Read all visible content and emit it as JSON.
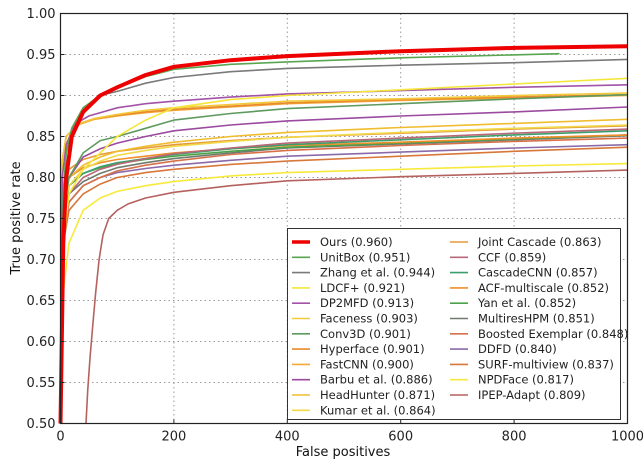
{
  "chart_data": {
    "type": "line",
    "title": "",
    "xlabel": "False positives",
    "ylabel": "True positive rate",
    "xlim": [
      0,
      1000
    ],
    "ylim": [
      0.5,
      1.0
    ],
    "xticks": [
      "0",
      "200",
      "400",
      "600",
      "800",
      "1000"
    ],
    "xtick_values": [
      0,
      200,
      400,
      600,
      800,
      1000
    ],
    "yticks": [
      "0.50",
      "0.55",
      "0.60",
      "0.65",
      "0.70",
      "0.75",
      "0.80",
      "0.85",
      "0.90",
      "0.95",
      "1.00"
    ],
    "ytick_values": [
      0.5,
      0.55,
      0.6,
      0.65,
      0.7,
      0.75,
      0.8,
      0.85,
      0.9,
      0.95,
      1.0
    ],
    "grid": true,
    "legend_position": "bottom-right",
    "series": [
      {
        "name": "Ours (0.960)",
        "color": "#ee0000",
        "width": 4,
        "x": [
          0,
          5,
          10,
          20,
          40,
          70,
          100,
          150,
          200,
          300,
          400,
          600,
          800,
          1000
        ],
        "y": [
          0.5,
          0.72,
          0.8,
          0.85,
          0.88,
          0.9,
          0.91,
          0.925,
          0.935,
          0.943,
          0.948,
          0.954,
          0.958,
          0.96
        ]
      },
      {
        "name": "UnitBox (0.951)",
        "color": "#5aa552",
        "width": 1.6,
        "x": [
          0,
          5,
          10,
          20,
          40,
          70,
          100,
          150,
          200,
          300,
          400,
          600,
          880
        ],
        "y": [
          0.5,
          0.78,
          0.83,
          0.86,
          0.885,
          0.9,
          0.91,
          0.923,
          0.932,
          0.938,
          0.941,
          0.946,
          0.951
        ]
      },
      {
        "name": "Zhang et al. (0.944)",
        "color": "#7a7a7a",
        "width": 1.6,
        "x": [
          0,
          5,
          10,
          20,
          40,
          70,
          100,
          150,
          200,
          300,
          400,
          600,
          800,
          1000
        ],
        "y": [
          0.5,
          0.78,
          0.83,
          0.86,
          0.885,
          0.9,
          0.905,
          0.915,
          0.922,
          0.929,
          0.933,
          0.937,
          0.94,
          0.944
        ]
      },
      {
        "name": "LDCF+ (0.921)",
        "color": "#f5e63a",
        "width": 1.6,
        "x": [
          0,
          5,
          15,
          40,
          70,
          100,
          150,
          200,
          300,
          400,
          600,
          800,
          1000
        ],
        "y": [
          0.5,
          0.72,
          0.78,
          0.81,
          0.83,
          0.85,
          0.87,
          0.885,
          0.895,
          0.9,
          0.907,
          0.914,
          0.921
        ]
      },
      {
        "name": "DP2MFD (0.913)",
        "color": "#a253a8",
        "width": 1.6,
        "x": [
          0,
          3,
          10,
          25,
          50,
          100,
          150,
          200,
          300,
          400,
          600,
          800,
          1000
        ],
        "y": [
          0.5,
          0.8,
          0.84,
          0.865,
          0.875,
          0.885,
          0.89,
          0.893,
          0.898,
          0.902,
          0.906,
          0.91,
          0.913
        ]
      },
      {
        "name": "Faceness (0.903)",
        "color": "#f2c93a",
        "width": 1.6,
        "x": [
          0,
          3,
          10,
          30,
          60,
          100,
          150,
          200,
          300,
          400,
          600,
          800,
          1000
        ],
        "y": [
          0.5,
          0.82,
          0.85,
          0.865,
          0.872,
          0.877,
          0.882,
          0.885,
          0.889,
          0.893,
          0.896,
          0.9,
          0.903
        ]
      },
      {
        "name": "Conv3D (0.901)",
        "color": "#5e9a5e",
        "width": 1.6,
        "x": [
          0,
          5,
          15,
          40,
          70,
          100,
          150,
          200,
          300,
          400,
          600,
          800,
          1000
        ],
        "y": [
          0.5,
          0.76,
          0.8,
          0.83,
          0.845,
          0.85,
          0.86,
          0.87,
          0.878,
          0.884,
          0.89,
          0.896,
          0.901
        ]
      },
      {
        "name": "Hyperface (0.901)",
        "color": "#e98a2c",
        "width": 1.6,
        "x": [
          0,
          3,
          10,
          30,
          60,
          100,
          150,
          200,
          300,
          400,
          600,
          800,
          1000
        ],
        "y": [
          0.5,
          0.82,
          0.85,
          0.865,
          0.872,
          0.876,
          0.88,
          0.883,
          0.887,
          0.891,
          0.895,
          0.898,
          0.901
        ]
      },
      {
        "name": "FastCNN (0.900)",
        "color": "#f4a93a",
        "width": 1.6,
        "x": [
          0,
          3,
          10,
          30,
          60,
          100,
          150,
          200,
          300,
          400,
          600,
          800,
          1000
        ],
        "y": [
          0.5,
          0.82,
          0.85,
          0.864,
          0.871,
          0.875,
          0.879,
          0.882,
          0.886,
          0.89,
          0.894,
          0.897,
          0.9
        ]
      },
      {
        "name": "Barbu et al. (0.886)",
        "color": "#9b4aa0",
        "width": 1.6,
        "x": [
          0,
          5,
          15,
          40,
          70,
          100,
          150,
          200,
          300,
          400,
          600,
          800,
          1000
        ],
        "y": [
          0.5,
          0.76,
          0.8,
          0.825,
          0.835,
          0.842,
          0.85,
          0.857,
          0.864,
          0.869,
          0.875,
          0.88,
          0.886
        ]
      },
      {
        "name": "HeadHunter (0.871)",
        "color": "#f0bd2e",
        "width": 1.6,
        "x": [
          0,
          5,
          15,
          40,
          70,
          100,
          150,
          200,
          300,
          400,
          600,
          800,
          1000
        ],
        "y": [
          0.5,
          0.77,
          0.8,
          0.815,
          0.825,
          0.832,
          0.838,
          0.843,
          0.85,
          0.855,
          0.861,
          0.866,
          0.871
        ]
      },
      {
        "name": "Kumar et al. (0.864)",
        "color": "#f1d94a",
        "width": 1.6,
        "x": [
          0,
          5,
          15,
          40,
          70,
          100,
          150,
          200,
          300,
          400,
          600,
          800,
          1000
        ],
        "y": [
          0.5,
          0.76,
          0.79,
          0.81,
          0.82,
          0.827,
          0.833,
          0.838,
          0.844,
          0.849,
          0.855,
          0.86,
          0.864
        ]
      },
      {
        "name": "Joint Cascade (0.863)",
        "color": "#e59a3a",
        "width": 1.6,
        "x": [
          0,
          5,
          15,
          40,
          70,
          100,
          150,
          200,
          300,
          400,
          600,
          800,
          1000
        ],
        "y": [
          0.5,
          0.77,
          0.81,
          0.822,
          0.828,
          0.832,
          0.836,
          0.84,
          0.845,
          0.849,
          0.854,
          0.859,
          0.863
        ]
      },
      {
        "name": "CCF (0.859)",
        "color": "#b86878",
        "width": 1.6,
        "x": [
          0,
          5,
          15,
          40,
          70,
          100,
          150,
          200,
          300,
          400,
          600,
          800,
          1000
        ],
        "y": [
          0.5,
          0.74,
          0.78,
          0.8,
          0.81,
          0.816,
          0.823,
          0.829,
          0.836,
          0.842,
          0.848,
          0.854,
          0.859
        ]
      },
      {
        "name": "CascadeCNN (0.857)",
        "color": "#3c9e6a",
        "width": 1.6,
        "x": [
          0,
          5,
          15,
          40,
          70,
          100,
          150,
          200,
          300,
          400,
          600,
          800,
          1000
        ],
        "y": [
          0.5,
          0.75,
          0.79,
          0.805,
          0.813,
          0.818,
          0.823,
          0.828,
          0.835,
          0.84,
          0.846,
          0.852,
          0.857
        ]
      },
      {
        "name": "ACF-multiscale (0.852)",
        "color": "#f08e2a",
        "width": 1.6,
        "x": [
          0,
          5,
          15,
          40,
          70,
          100,
          150,
          200,
          300,
          400,
          600,
          800,
          1000
        ],
        "y": [
          0.5,
          0.76,
          0.8,
          0.812,
          0.818,
          0.822,
          0.826,
          0.83,
          0.835,
          0.839,
          0.843,
          0.848,
          0.852
        ]
      },
      {
        "name": "Yan et al. (0.852)",
        "color": "#4aa34a",
        "width": 1.6,
        "x": [
          0,
          5,
          15,
          40,
          70,
          100,
          150,
          200,
          300,
          400,
          600,
          800,
          1000
        ],
        "y": [
          0.5,
          0.75,
          0.79,
          0.805,
          0.812,
          0.817,
          0.822,
          0.826,
          0.832,
          0.837,
          0.842,
          0.847,
          0.852
        ]
      },
      {
        "name": "MultiresHPM (0.851)",
        "color": "#707a6e",
        "width": 1.6,
        "x": [
          0,
          5,
          15,
          40,
          70,
          100,
          150,
          200,
          300,
          400,
          600,
          800,
          1000
        ],
        "y": [
          0.5,
          0.74,
          0.78,
          0.795,
          0.805,
          0.812,
          0.818,
          0.823,
          0.83,
          0.836,
          0.841,
          0.846,
          0.851
        ]
      },
      {
        "name": "Boosted Exemplar (0.848)",
        "color": "#d8704a",
        "width": 1.6,
        "x": [
          0,
          5,
          15,
          40,
          70,
          100,
          150,
          200,
          300,
          400,
          600,
          800,
          1000
        ],
        "y": [
          0.5,
          0.73,
          0.77,
          0.79,
          0.8,
          0.808,
          0.815,
          0.82,
          0.828,
          0.833,
          0.839,
          0.844,
          0.848
        ]
      },
      {
        "name": "DDFD (0.840)",
        "color": "#8a6aa8",
        "width": 1.6,
        "x": [
          0,
          5,
          15,
          40,
          70,
          100,
          150,
          200,
          300,
          400,
          600,
          800,
          1000
        ],
        "y": [
          0.5,
          0.73,
          0.77,
          0.79,
          0.8,
          0.806,
          0.811,
          0.815,
          0.821,
          0.826,
          0.831,
          0.836,
          0.84
        ]
      },
      {
        "name": "SURF-multiview (0.837)",
        "color": "#d8773a",
        "width": 1.6,
        "x": [
          0,
          5,
          15,
          40,
          70,
          100,
          150,
          200,
          300,
          400,
          600,
          800,
          1000
        ],
        "y": [
          0.5,
          0.72,
          0.76,
          0.78,
          0.792,
          0.8,
          0.806,
          0.81,
          0.816,
          0.82,
          0.826,
          0.832,
          0.837
        ]
      },
      {
        "name": "NPDFace (0.817)",
        "color": "#f7ea3c",
        "width": 1.6,
        "x": [
          0,
          5,
          15,
          40,
          70,
          100,
          150,
          200,
          300,
          400,
          600,
          800,
          1000
        ],
        "y": [
          0.5,
          0.66,
          0.72,
          0.76,
          0.775,
          0.783,
          0.79,
          0.795,
          0.802,
          0.806,
          0.81,
          0.814,
          0.817
        ]
      },
      {
        "name": "IPEP-Adapt (0.809)",
        "color": "#b5625e",
        "width": 1.6,
        "x": [
          45,
          48,
          52,
          57,
          62,
          68,
          75,
          85,
          100,
          120,
          150,
          200,
          300,
          400,
          600,
          800,
          1000
        ],
        "y": [
          0.5,
          0.54,
          0.58,
          0.62,
          0.66,
          0.7,
          0.73,
          0.75,
          0.76,
          0.768,
          0.775,
          0.782,
          0.79,
          0.796,
          0.801,
          0.805,
          0.809
        ]
      }
    ]
  }
}
